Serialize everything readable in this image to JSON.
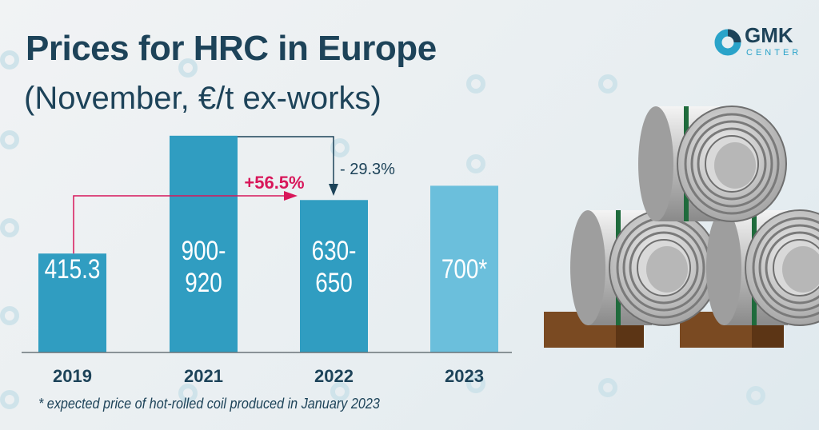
{
  "header": {
    "title": "Prices for HRC in Europe",
    "subtitle": "(November, €/t ex-works)"
  },
  "logo": {
    "name": "GMK",
    "sub": "CENTER"
  },
  "watermark": "GMK",
  "chart_data": {
    "type": "bar",
    "categories": [
      "2019",
      "2021",
      "2022",
      "2023"
    ],
    "values": [
      415.3,
      910,
      640,
      700
    ],
    "labels": [
      "415.3",
      "900-\n920",
      "630-\n650",
      "700*"
    ],
    "ranges": [
      null,
      [
        900,
        920
      ],
      [
        630,
        650
      ],
      null
    ],
    "colors": [
      "#309dc1",
      "#309dc1",
      "#309dc1",
      "#6bbfdc"
    ],
    "ylim": [
      0,
      950
    ],
    "annotations": [
      {
        "text": "+56.5%",
        "from": "2019",
        "to": "2022",
        "color": "#d8175a"
      },
      {
        "text": "- 29.3%",
        "from": "2021",
        "to": "2022",
        "color": "#1d4359"
      }
    ],
    "footnote": "* expected price of hot-rolled coil produced in January 2023"
  }
}
